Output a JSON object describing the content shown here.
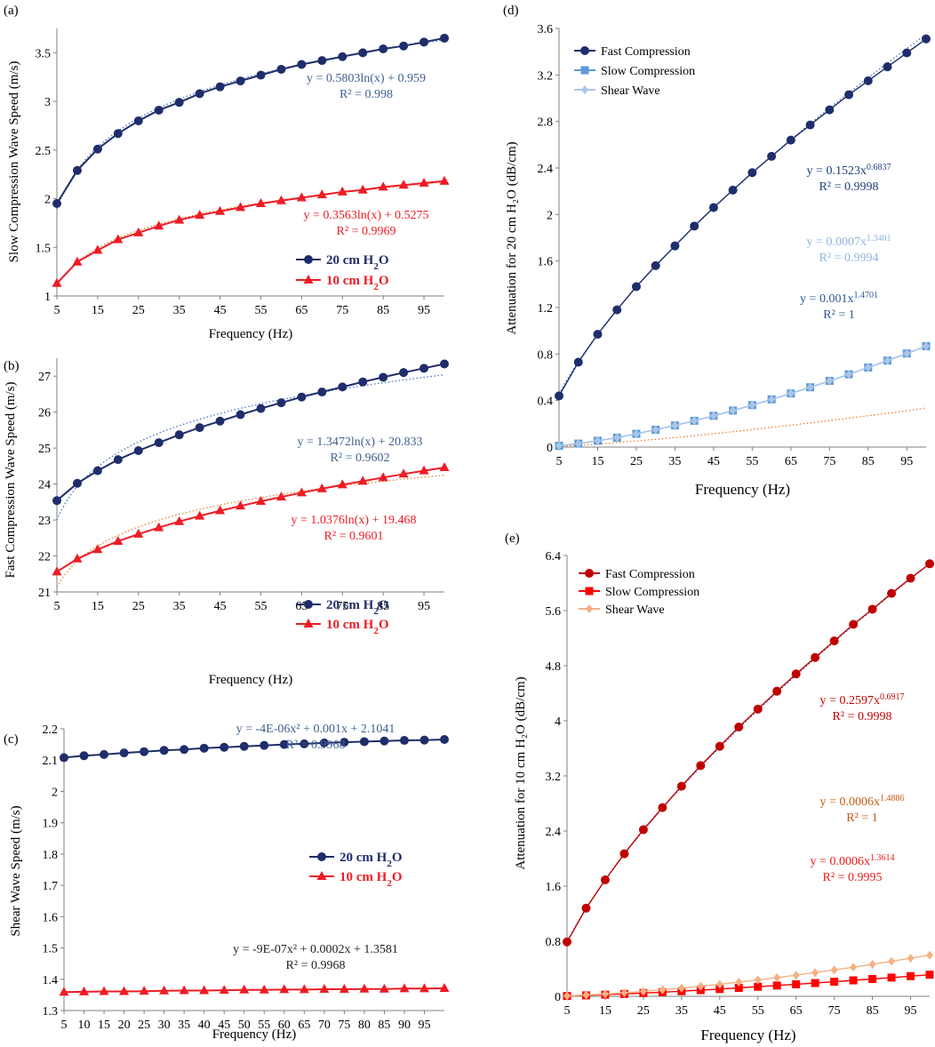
{
  "chart_data": [
    {
      "id": "a",
      "panel_label": "(a)",
      "type": "line",
      "xlabel": "Frequency (Hz)",
      "ylabel": "Slow Compression  Wave Speed  (m/s)",
      "xlim": [
        5,
        100
      ],
      "xticks": [
        5,
        15,
        25,
        35,
        45,
        55,
        65,
        75,
        85,
        95
      ],
      "ylim": [
        1,
        3.75
      ],
      "yticks": [
        1,
        1.5,
        2,
        2.5,
        3,
        3.5
      ],
      "ytick_labels": [
        "1",
        "1.5",
        "2",
        "2.5",
        "3",
        "3.5"
      ],
      "x": [
        5,
        10,
        15,
        20,
        25,
        30,
        35,
        40,
        45,
        50,
        55,
        60,
        65,
        70,
        75,
        80,
        85,
        90,
        95,
        100
      ],
      "series": [
        {
          "name": "20 cm H2O",
          "legend_main": "20 cm H",
          "legend_sub": "2",
          "legend_tail": "O",
          "color": "#1F2D6B",
          "marker": "circle",
          "values": [
            1.95,
            2.29,
            2.51,
            2.67,
            2.8,
            2.91,
            2.99,
            3.08,
            3.15,
            3.21,
            3.27,
            3.33,
            3.38,
            3.42,
            3.46,
            3.5,
            3.54,
            3.57,
            3.61,
            3.65
          ],
          "fit": {
            "kind": "ln",
            "a": 0.5803,
            "b": 0.959
          }
        },
        {
          "name": "10 cm H2O",
          "legend_main": "10 cm H",
          "legend_sub": "2",
          "legend_tail": "O",
          "color": "#EE1C25",
          "marker": "triangle",
          "values": [
            1.13,
            1.35,
            1.47,
            1.58,
            1.65,
            1.72,
            1.78,
            1.83,
            1.87,
            1.91,
            1.95,
            1.98,
            2.01,
            2.04,
            2.07,
            2.09,
            2.12,
            2.14,
            2.16,
            2.18
          ],
          "fit": {
            "kind": "ln",
            "a": 0.3563,
            "b": 0.5275
          }
        }
      ],
      "annotations": [
        {
          "line1": "y = 0.5803ln(x) + 0.959",
          "line2": "R² = 0.998",
          "color": "#3F5F8F"
        },
        {
          "line1": "y = 0.3563ln(x) + 0.5275",
          "line2": "R² = 0.9969",
          "color": "#EE1C25"
        }
      ]
    },
    {
      "id": "b",
      "panel_label": "(b)",
      "type": "line",
      "xlabel": "Frequency (Hz)",
      "ylabel": "Fast Compression  Wave Speed  (m/s)",
      "xlim": [
        5,
        100
      ],
      "xticks": [
        5,
        15,
        25,
        35,
        45,
        55,
        65,
        75,
        85,
        95
      ],
      "ylim": [
        21,
        27.5
      ],
      "yticks": [
        21,
        22,
        23,
        24,
        25,
        26,
        27
      ],
      "ytick_labels": [
        "21",
        "22",
        "23",
        "24",
        "25",
        "26",
        "27"
      ],
      "x": [
        5,
        10,
        15,
        20,
        25,
        30,
        35,
        40,
        45,
        50,
        55,
        60,
        65,
        70,
        75,
        80,
        85,
        90,
        95,
        100
      ],
      "series": [
        {
          "name": "20 cm H2O",
          "legend_main": "20 cm H",
          "legend_sub": "2",
          "legend_tail": "O",
          "color": "#1F2D6B",
          "marker": "circle",
          "values": [
            23.54,
            24.02,
            24.37,
            24.68,
            24.93,
            25.15,
            25.37,
            25.57,
            25.75,
            25.93,
            26.1,
            26.26,
            26.42,
            26.56,
            26.7,
            26.84,
            26.97,
            27.1,
            27.22,
            27.34
          ],
          "fit": {
            "kind": "ln",
            "a": 1.3472,
            "b": 20.833
          }
        },
        {
          "name": "10 cm H2O",
          "legend_main": "10 cm H",
          "legend_sub": "2",
          "legend_tail": "O",
          "color": "#EE1C25",
          "marker": "triangle",
          "values": [
            21.56,
            21.92,
            22.18,
            22.41,
            22.61,
            22.79,
            22.96,
            23.11,
            23.26,
            23.39,
            23.52,
            23.64,
            23.76,
            23.87,
            23.98,
            24.08,
            24.18,
            24.28,
            24.37,
            24.46
          ],
          "fit": {
            "kind": "ln",
            "a": 1.0376,
            "b": 19.468
          }
        }
      ],
      "annotations": [
        {
          "line1": "y = 1.3472ln(x) + 20.833",
          "line2": "R² = 0.9602",
          "color": "#3F5F8F"
        },
        {
          "line1": "y = 1.0376ln(x) + 19.468",
          "line2": "R² = 0.9601",
          "color": "#EE1C25"
        }
      ]
    },
    {
      "id": "c",
      "panel_label": "(c)",
      "type": "line",
      "xlabel": "Frequency  (Hz)",
      "ylabel": "Shear Wave Speed  (m/s)",
      "xlim": [
        5,
        100
      ],
      "xticks": [
        5,
        10,
        15,
        20,
        25,
        30,
        35,
        40,
        45,
        50,
        55,
        60,
        65,
        70,
        75,
        80,
        85,
        90,
        95
      ],
      "ylim": [
        1.3,
        2.2
      ],
      "yticks": [
        1.3,
        1.4,
        1.5,
        1.6,
        1.7,
        1.8,
        1.9,
        2.0,
        2.1,
        2.2
      ],
      "ytick_labels": [
        "1.3",
        "1.4",
        "1.5",
        "1.6",
        "1.7",
        "1.8",
        "1.9",
        "2",
        "2.1",
        "2.2"
      ],
      "x": [
        5,
        10,
        15,
        20,
        25,
        30,
        35,
        40,
        45,
        50,
        55,
        60,
        65,
        70,
        75,
        80,
        85,
        90,
        95,
        100
      ],
      "series": [
        {
          "name": "20 cm H2O",
          "legend_main": "20 cm H",
          "legend_sub": "2",
          "legend_tail": "O",
          "color": "#1F2D6B",
          "marker": "circle",
          "values": [
            2.108,
            2.114,
            2.118,
            2.123,
            2.127,
            2.131,
            2.134,
            2.138,
            2.141,
            2.144,
            2.147,
            2.15,
            2.152,
            2.155,
            2.157,
            2.159,
            2.161,
            2.163,
            2.164,
            2.166
          ],
          "fit": null
        },
        {
          "name": "10 cm H2O",
          "legend_main": "10 cm H",
          "legend_sub": "2",
          "legend_tail": "O",
          "color": "#EE1C25",
          "marker": "triangle",
          "values": [
            1.359,
            1.36,
            1.361,
            1.361,
            1.362,
            1.363,
            1.364,
            1.364,
            1.365,
            1.366,
            1.366,
            1.367,
            1.367,
            1.368,
            1.368,
            1.369,
            1.369,
            1.37,
            1.37,
            1.371
          ],
          "fit": null
        }
      ],
      "annotations": [
        {
          "line1": "y = -4E-06x² + 0.001x + 2.1041",
          "line2": "R² = 0.9968",
          "color": "#3F5F8F"
        },
        {
          "line1": "y = -9E-07x² + 0.0002x + 1.3581",
          "line2": "R² = 0.9968",
          "color": "#222222"
        }
      ]
    },
    {
      "id": "d",
      "panel_label": "(d)",
      "type": "line",
      "xlabel": "Frequency  (Hz)",
      "ylabel": "Attenuation  for 20 cm H₂O (dB/cm)",
      "xlim": [
        5,
        100
      ],
      "xticks": [
        5,
        15,
        25,
        35,
        45,
        55,
        65,
        75,
        85,
        95
      ],
      "ylim": [
        0,
        3.6
      ],
      "yticks": [
        0,
        0.4,
        0.8,
        1.2,
        1.6,
        2,
        2.4,
        2.8,
        3.2,
        3.6
      ],
      "ytick_labels": [
        "0",
        "0.4",
        "0.8",
        "1.2",
        "1.6",
        "2",
        "2.4",
        "2.8",
        "3.2",
        "3.6"
      ],
      "x": [
        5,
        10,
        15,
        20,
        25,
        30,
        35,
        40,
        45,
        50,
        55,
        60,
        65,
        70,
        75,
        80,
        85,
        90,
        95,
        100
      ],
      "series": [
        {
          "name": "Fast Compression",
          "color": "#1F2D6B",
          "marker": "circle",
          "values": [
            0.44,
            0.73,
            0.97,
            1.18,
            1.38,
            1.56,
            1.73,
            1.9,
            2.06,
            2.21,
            2.36,
            2.5,
            2.64,
            2.77,
            2.9,
            3.03,
            3.15,
            3.27,
            3.39,
            3.51
          ],
          "fit": {
            "kind": "pow",
            "a": 0.1523,
            "b": 0.6837
          }
        },
        {
          "name": "Slow Compression",
          "color": "#5B9BD5",
          "marker": "square",
          "values": [
            0.011,
            0.03,
            0.054,
            0.081,
            0.114,
            0.149,
            0.186,
            0.226,
            0.269,
            0.314,
            0.361,
            0.41,
            0.461,
            0.514,
            0.569,
            0.626,
            0.684,
            0.744,
            0.805,
            0.868
          ],
          "fit": {
            "kind": "pow",
            "a": 0.0007,
            "b": 1.3401
          }
        },
        {
          "name": "Shear Wave",
          "color": "#A9C4E8",
          "marker": "diamond",
          "values": [
            0.011,
            0.03,
            0.054,
            0.081,
            0.114,
            0.149,
            0.186,
            0.226,
            0.269,
            0.314,
            0.361,
            0.41,
            0.461,
            0.514,
            0.569,
            0.626,
            0.684,
            0.744,
            0.805,
            0.868
          ],
          "fit": null
        }
      ],
      "annotations": [
        {
          "main": "y = 0.1523x",
          "exp": "0.6837",
          "line2": "R² = 0.9998",
          "color": "#1F3D7A"
        },
        {
          "main": "y = 0.0007x",
          "exp": "1.3401",
          "line2": "R² = 0.9994",
          "color": "#8EB4E3"
        },
        {
          "main": "y = 0.001x",
          "exp": "1.4701",
          "line2": "R² = 1",
          "color": "#2F5597"
        }
      ]
    },
    {
      "id": "e",
      "panel_label": "(e)",
      "type": "line",
      "xlabel": "Frequency  (Hz)",
      "ylabel": "Attenuation for 10 cm H₂O (dB/cm)",
      "xlim": [
        5,
        100
      ],
      "xticks": [
        5,
        15,
        25,
        35,
        45,
        55,
        65,
        75,
        85,
        95
      ],
      "ylim": [
        0,
        6.4
      ],
      "yticks": [
        0,
        0.8,
        1.6,
        2.4,
        3.2,
        4,
        4.8,
        5.6,
        6.4
      ],
      "ytick_labels": [
        "0",
        "0.8",
        "1.6",
        "2.4",
        "3.2",
        "4",
        "4.8",
        "5.6",
        "6.4"
      ],
      "x": [
        5,
        10,
        15,
        20,
        25,
        30,
        35,
        40,
        45,
        50,
        55,
        60,
        65,
        70,
        75,
        80,
        85,
        90,
        95,
        100
      ],
      "series": [
        {
          "name": "Fast Compression",
          "color": "#C00000",
          "marker": "circle",
          "values": [
            0.79,
            1.28,
            1.69,
            2.07,
            2.42,
            2.74,
            3.05,
            3.35,
            3.63,
            3.91,
            4.17,
            4.43,
            4.68,
            4.92,
            5.16,
            5.4,
            5.62,
            5.85,
            6.07,
            6.28
          ],
          "fit": {
            "kind": "pow",
            "a": 0.2597,
            "b": 0.6917
          }
        },
        {
          "name": "Slow Compression",
          "color": "#FF0000",
          "marker": "square",
          "values": [
            0.005,
            0.014,
            0.024,
            0.035,
            0.048,
            0.061,
            0.075,
            0.09,
            0.106,
            0.122,
            0.139,
            0.157,
            0.175,
            0.193,
            0.212,
            0.232,
            0.252,
            0.272,
            0.293,
            0.314
          ],
          "fit": null
        },
        {
          "name": "Shear Wave",
          "color": "#F4B183",
          "marker": "diamond",
          "values": [
            0.007,
            0.019,
            0.034,
            0.052,
            0.073,
            0.095,
            0.12,
            0.147,
            0.175,
            0.206,
            0.238,
            0.272,
            0.307,
            0.344,
            0.383,
            0.423,
            0.465,
            0.508,
            0.553,
            0.598
          ],
          "fit": null
        }
      ],
      "annotations": [
        {
          "main": "y = 0.2597x",
          "exp": "0.6917",
          "line2": "R² = 0.9998",
          "color": "#C00000"
        },
        {
          "main": "y = 0.0006x",
          "exp": "1.4886",
          "line2": "R² = 1",
          "color": "#C55A11"
        },
        {
          "main": "y = 0.0006x",
          "exp": "1.3614",
          "line2": "R² = 0.9995",
          "color": "#E81C1C"
        }
      ]
    }
  ]
}
